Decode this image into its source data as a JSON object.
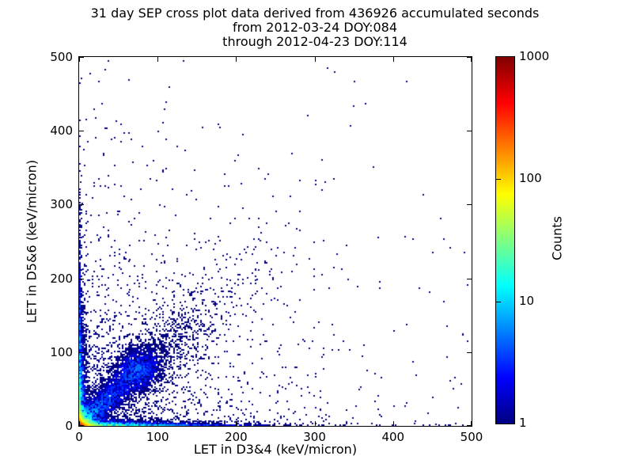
{
  "title": {
    "lines": [
      "31 day SEP cross plot data derived from 436926 accumulated seconds",
      "from 2012-03-24 DOY:084",
      "through 2012-04-23 DOY:114"
    ]
  },
  "chart_data": {
    "type": "heatmap",
    "subtype": "2d-histogram cross plot (log-color scatter density)",
    "title": "31 day SEP cross plot data derived from 436926 accumulated seconds from 2012-03-24 DOY:084 through 2012-04-23 DOY:114",
    "xlabel": "LET in D3&4 (keV/micron)",
    "ylabel": "LET in D5&6 (keV/micron)",
    "xlim": [
      0,
      500
    ],
    "ylim": [
      0,
      500
    ],
    "xticks": [
      0,
      100,
      200,
      300,
      400,
      500
    ],
    "yticks": [
      0,
      100,
      200,
      300,
      400,
      500
    ],
    "grid": false,
    "background_color": "#ffffff",
    "point_color_low": "#000080",
    "point_color_high": "#800000",
    "colorbar": {
      "label": "Counts",
      "scale": "log",
      "min": 1,
      "max": 1000,
      "ticks": [
        1000,
        100,
        10,
        1
      ],
      "colormap": "jet",
      "stops_bottom_to_top": [
        "#000080",
        "#0000ff",
        "#0080ff",
        "#00ffff",
        "#80ff80",
        "#ffff00",
        "#ff8000",
        "#ff0000",
        "#800000"
      ]
    },
    "description": "Dense hot spot (counts up to ~1000, red/orange/yellow) at the origin; bright bands hugging both axes fading from orange/green to blue out to ~300 keV/micron; a diagonal y=x band of blue points out to ~250 with a denser cluster near 60-90; sparse dark-navy single-count points filling the lower-left triangle; isolated single counts at high LET.",
    "density_model": {
      "seed": 42,
      "bin_size_units": 2,
      "origin_blob": {
        "amplitude": 500,
        "decay_x": 5.5,
        "decay_y": 5.5
      },
      "x_axis_band": {
        "amplitude": 60,
        "decay_along": 55,
        "decay_perp": 2.5,
        "tail_amplitude": 2.2,
        "tail_decay": 130
      },
      "y_axis_band": {
        "amplitude": 60,
        "decay_along": 55,
        "decay_perp": 2.5,
        "tail_amplitude": 2.2,
        "tail_decay": 130
      },
      "diagonal_band": {
        "amplitude": 7,
        "decay": 40,
        "width_base": 3,
        "width_growth": 0.1,
        "cluster_amplitude": 2.5,
        "cluster_center": 75,
        "cluster_sigma": 15
      },
      "background_haze": {
        "near_amplitude": 0.7,
        "near_decay": 90,
        "far_amplitude": 0.012,
        "far_decay": 300
      }
    },
    "outlier_points": [
      [
        326,
        480
      ],
      [
        350,
        433
      ],
      [
        346,
        407
      ],
      [
        301,
        327
      ],
      [
        309,
        320
      ],
      [
        207,
        328
      ],
      [
        3,
        471
      ],
      [
        14,
        478
      ],
      [
        1,
        414
      ],
      [
        6,
        374
      ],
      [
        1,
        346
      ],
      [
        2,
        331
      ],
      [
        4,
        302
      ],
      [
        9,
        288
      ],
      [
        141,
        179
      ],
      [
        232,
        262
      ],
      [
        147,
        253
      ],
      [
        258,
        208
      ],
      [
        480,
        3
      ],
      [
        455,
        2
      ],
      [
        428,
        6
      ]
    ]
  }
}
